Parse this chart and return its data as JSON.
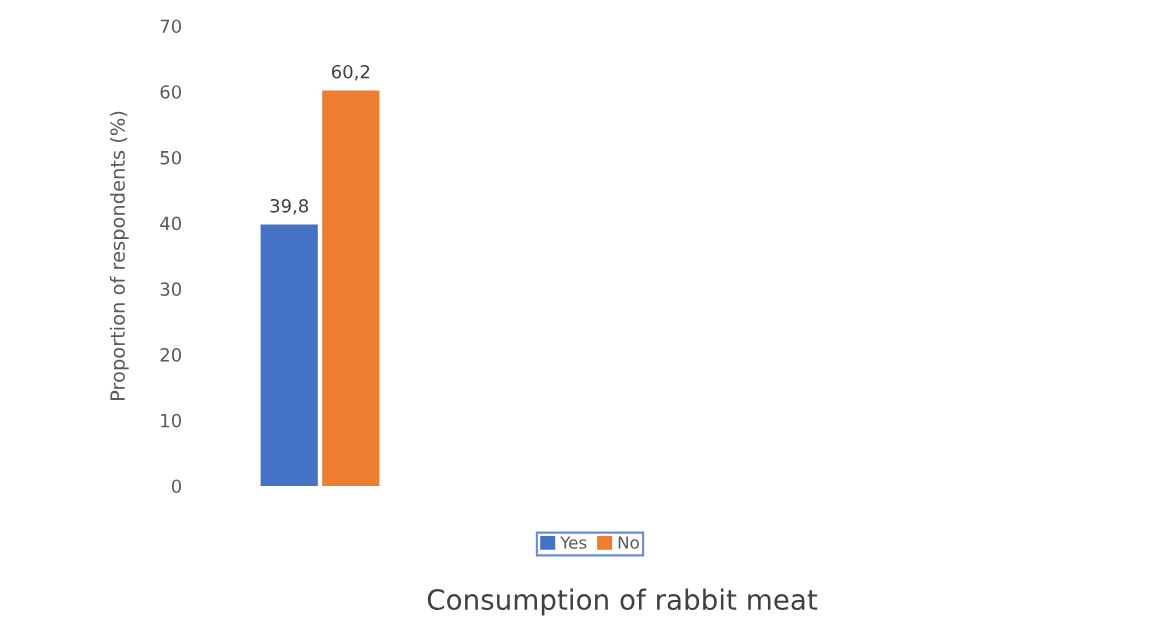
{
  "chart_data": {
    "type": "bar",
    "xlabel": "Consumption of rabbit meat",
    "ylabel": "Proportion of respondents (%)",
    "categories": [
      null
    ],
    "series": [
      {
        "name": "Yes",
        "color": "#4472c4",
        "values": [
          39.8
        ],
        "value_labels": [
          "39,8"
        ]
      },
      {
        "name": "No",
        "color": "#ed7d31",
        "values": [
          60.2
        ],
        "value_labels": [
          "60,2"
        ]
      }
    ],
    "ylim": [
      0,
      70
    ],
    "yticks": [
      0,
      10,
      20,
      30,
      40,
      50,
      60,
      70
    ],
    "grid": false,
    "legend": "bottom"
  }
}
